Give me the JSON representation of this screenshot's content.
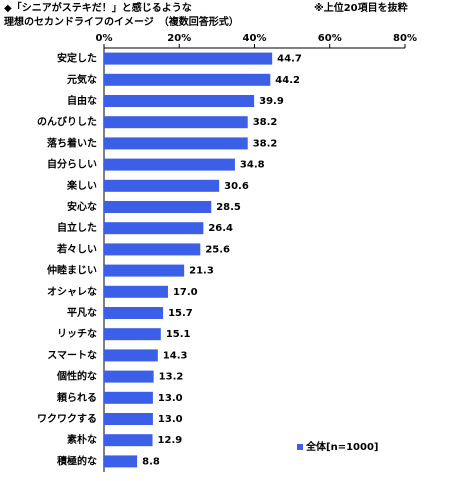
{
  "chart_data": {
    "type": "barh",
    "title": [
      "◆「シニアがステキだ！」と感じるような",
      "理想のセカンドライフのイメージ　（複数回答形式）"
    ],
    "annotation": "※上位20項目を抜粋",
    "categories": [
      "安定した",
      "元気な",
      "自由な",
      "のんびりした",
      "落ち着いた",
      "自分らしい",
      "楽しい",
      "安心な",
      "自立した",
      "若々しい",
      "仲睦まじい",
      "オシャレな",
      "平凡な",
      "リッチな",
      "スマートな",
      "個性的な",
      "頼られる",
      "ワクワクする",
      "素朴な",
      "積極的な"
    ],
    "series": [
      {
        "name": "全体[n=1000]",
        "color": "#3b5fe6",
        "values": [
          44.7,
          44.2,
          39.9,
          38.2,
          38.2,
          34.8,
          30.6,
          28.5,
          26.4,
          25.6,
          21.3,
          17.0,
          15.7,
          15.1,
          14.3,
          13.2,
          13.0,
          13.0,
          12.9,
          8.8
        ],
        "value_labels": [
          "44.7",
          "44.2",
          "39.9",
          "38.2",
          "38.2",
          "34.8",
          "30.6",
          "28.5",
          "26.4",
          "25.6",
          "21.3",
          "17.0",
          "15.7",
          "15.1",
          "14.3",
          "13.2",
          "13.0",
          "13.0",
          "12.9",
          "8.8"
        ]
      }
    ],
    "xlim": [
      0,
      80
    ],
    "xticks": [
      {
        "value": 0,
        "label": "0%"
      },
      {
        "value": 20,
        "label": "20%"
      },
      {
        "value": 40,
        "label": "40%"
      },
      {
        "value": 60,
        "label": "60%"
      },
      {
        "value": 80,
        "label": "80%"
      }
    ],
    "legend": "lower right"
  }
}
